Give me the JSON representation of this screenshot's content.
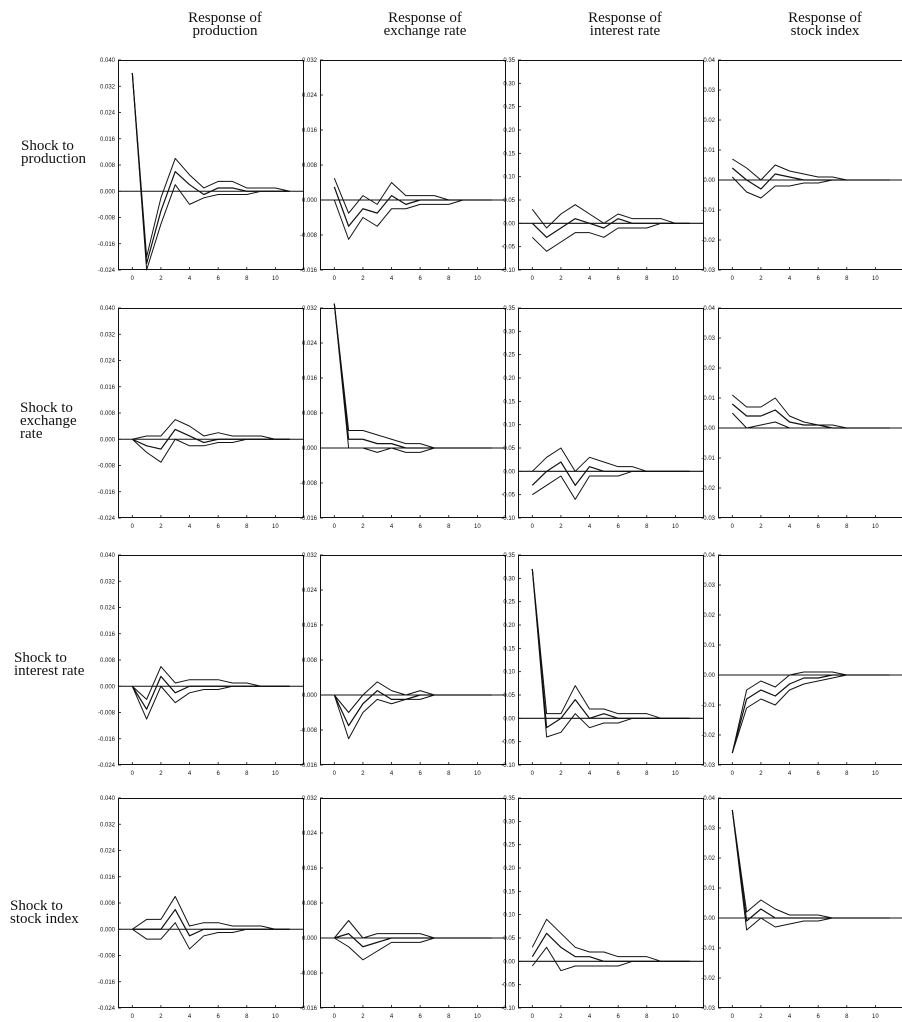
{
  "column_headers": [
    {
      "line1": "Response of",
      "line2": "production"
    },
    {
      "line1": "Response of",
      "line2": "exchange rate"
    },
    {
      "line1": "Response of",
      "line2": "interest rate"
    },
    {
      "line1": "Response of",
      "line2": "stock index"
    }
  ],
  "row_headers": [
    {
      "lines": [
        "Shock to",
        "production"
      ]
    },
    {
      "lines": [
        "Shock to",
        "exchange",
        "rate"
      ]
    },
    {
      "lines": [
        "Shock to",
        "interest rate"
      ]
    },
    {
      "lines": [
        "Shock to",
        "stock index"
      ]
    }
  ],
  "chart_data": {
    "type": "line",
    "x": [
      0,
      1,
      2,
      3,
      4,
      5,
      6,
      7,
      8,
      9,
      10,
      11
    ],
    "x_ticks": [
      0,
      2,
      4,
      6,
      8,
      10
    ],
    "x_tick_labels": [
      "0",
      "2",
      "4",
      "6",
      "8",
      "10"
    ],
    "columns": [
      {
        "ylim": [
          -0.024,
          0.04
        ],
        "yticks": [
          -0.024,
          -0.016,
          -0.008,
          0.0,
          0.008,
          0.016,
          0.024,
          0.032,
          0.04
        ],
        "ytick_labels": [
          "-0.024",
          "-0.016",
          "-0.008",
          "0.000",
          "0.008",
          "0.016",
          "0.024",
          "0.032",
          "0.040"
        ]
      },
      {
        "ylim": [
          -0.016,
          0.032
        ],
        "yticks": [
          -0.016,
          -0.008,
          0.0,
          0.008,
          0.016,
          0.024,
          0.032
        ],
        "ytick_labels": [
          "-0.016",
          "-0.008",
          "0.000",
          "0.008",
          "0.016",
          "0.024",
          "0.032"
        ]
      },
      {
        "ylim": [
          -0.1,
          0.35
        ],
        "yticks": [
          -0.1,
          -0.05,
          0.0,
          0.05,
          0.1,
          0.15,
          0.2,
          0.25,
          0.3,
          0.35
        ],
        "ytick_labels": [
          "-0.10",
          "-0.05",
          "0.00",
          "0.05",
          "0.10",
          "0.15",
          "0.20",
          "0.25",
          "0.30",
          "0.35"
        ]
      },
      {
        "ylim": [
          -0.03,
          0.04
        ],
        "yticks": [
          -0.03,
          -0.02,
          -0.01,
          0.0,
          0.01,
          0.02,
          0.03,
          0.04
        ],
        "ytick_labels": [
          "-0.03",
          "-0.02",
          "-0.01",
          "0.00",
          "0.01",
          "0.02",
          "0.03",
          "0.04"
        ]
      }
    ],
    "panels": [
      [
        {
          "series": [
            {
              "values": [
                0.036,
                -0.02,
                -0.002,
                0.01,
                0.005,
                0.001,
                0.003,
                0.003,
                0.001,
                0.001,
                0.001,
                0.0
              ]
            },
            {
              "values": [
                0.036,
                -0.022,
                -0.006,
                0.006,
                0.002,
                -0.001,
                0.001,
                0.001,
                0.0,
                0.0,
                0.0,
                0.0
              ]
            },
            {
              "values": [
                0.036,
                -0.024,
                -0.01,
                0.002,
                -0.004,
                -0.002,
                -0.001,
                -0.001,
                -0.001,
                0.0,
                0.0,
                0.0
              ]
            }
          ]
        },
        {
          "series": [
            {
              "values": [
                0.005,
                -0.003,
                0.001,
                -0.001,
                0.004,
                0.001,
                0.001,
                0.001,
                0.0,
                0.0,
                0.0,
                0.0
              ]
            },
            {
              "values": [
                0.003,
                -0.006,
                -0.002,
                -0.003,
                0.001,
                -0.001,
                0.0,
                0.0,
                0.0,
                0.0,
                0.0,
                0.0
              ]
            },
            {
              "values": [
                0.0,
                -0.009,
                -0.004,
                -0.006,
                -0.002,
                -0.002,
                -0.001,
                -0.001,
                -0.001,
                0.0,
                0.0,
                0.0
              ]
            }
          ]
        },
        {
          "series": [
            {
              "values": [
                0.03,
                -0.01,
                0.02,
                0.04,
                0.02,
                0.0,
                0.02,
                0.01,
                0.01,
                0.01,
                0.0,
                0.0
              ]
            },
            {
              "values": [
                0.0,
                -0.03,
                -0.01,
                0.01,
                0.0,
                -0.01,
                0.01,
                0.0,
                0.0,
                0.0,
                0.0,
                0.0
              ]
            },
            {
              "values": [
                -0.03,
                -0.06,
                -0.04,
                -0.02,
                -0.02,
                -0.03,
                -0.01,
                -0.01,
                -0.01,
                0.0,
                0.0,
                0.0
              ]
            }
          ]
        },
        {
          "series": [
            {
              "values": [
                0.007,
                0.004,
                0.0,
                0.005,
                0.003,
                0.002,
                0.001,
                0.001,
                0.0,
                0.0,
                0.0,
                0.0
              ]
            },
            {
              "values": [
                0.004,
                0.0,
                -0.003,
                0.002,
                0.001,
                0.0,
                0.0,
                0.0,
                0.0,
                0.0,
                0.0,
                0.0
              ]
            },
            {
              "values": [
                0.001,
                -0.004,
                -0.006,
                -0.002,
                -0.002,
                -0.001,
                -0.001,
                0.0,
                0.0,
                0.0,
                0.0,
                0.0
              ]
            }
          ]
        }
      ],
      [
        {
          "series": [
            {
              "values": [
                0.0,
                0.001,
                0.001,
                0.006,
                0.004,
                0.001,
                0.002,
                0.001,
                0.001,
                0.001,
                0.0,
                0.0
              ]
            },
            {
              "values": [
                0.0,
                -0.002,
                -0.003,
                0.003,
                0.001,
                -0.001,
                0.0,
                0.0,
                0.0,
                0.0,
                0.0,
                0.0
              ]
            },
            {
              "values": [
                0.0,
                -0.004,
                -0.007,
                0.0,
                -0.002,
                -0.002,
                -0.001,
                -0.001,
                0.0,
                0.0,
                0.0,
                0.0
              ]
            }
          ]
        },
        {
          "series": [
            {
              "values": [
                0.033,
                0.004,
                0.004,
                0.003,
                0.002,
                0.001,
                0.001,
                0.0,
                0.0,
                0.0,
                0.0,
                0.0
              ]
            },
            {
              "values": [
                0.033,
                0.002,
                0.002,
                0.001,
                0.001,
                0.0,
                0.0,
                0.0,
                0.0,
                0.0,
                0.0,
                0.0
              ]
            },
            {
              "values": [
                0.033,
                0.0,
                0.0,
                -0.001,
                0.0,
                -0.001,
                -0.001,
                0.0,
                0.0,
                0.0,
                0.0,
                0.0
              ]
            }
          ]
        },
        {
          "series": [
            {
              "values": [
                0.0,
                0.03,
                0.05,
                0.0,
                0.03,
                0.02,
                0.01,
                0.01,
                0.0,
                0.0,
                0.0,
                0.0
              ]
            },
            {
              "values": [
                -0.03,
                0.0,
                0.02,
                -0.03,
                0.01,
                0.0,
                0.0,
                0.0,
                0.0,
                0.0,
                0.0,
                0.0
              ]
            },
            {
              "values": [
                -0.05,
                -0.03,
                -0.01,
                -0.06,
                -0.01,
                -0.01,
                -0.01,
                0.0,
                0.0,
                0.0,
                0.0,
                0.0
              ]
            }
          ]
        },
        {
          "series": [
            {
              "values": [
                0.011,
                0.007,
                0.007,
                0.01,
                0.004,
                0.002,
                0.001,
                0.001,
                0.0,
                0.0,
                0.0,
                0.0
              ]
            },
            {
              "values": [
                0.008,
                0.004,
                0.004,
                0.006,
                0.002,
                0.001,
                0.001,
                0.0,
                0.0,
                0.0,
                0.0,
                0.0
              ]
            },
            {
              "values": [
                0.005,
                0.0,
                0.001,
                0.002,
                0.0,
                0.0,
                0.0,
                0.0,
                0.0,
                0.0,
                0.0,
                0.0
              ]
            }
          ]
        }
      ],
      [
        {
          "series": [
            {
              "values": [
                0.0,
                -0.004,
                0.006,
                0.001,
                0.002,
                0.002,
                0.002,
                0.001,
                0.001,
                0.0,
                0.0,
                0.0
              ]
            },
            {
              "values": [
                0.0,
                -0.007,
                0.003,
                -0.002,
                0.0,
                0.0,
                0.0,
                0.0,
                0.0,
                0.0,
                0.0,
                0.0
              ]
            },
            {
              "values": [
                0.0,
                -0.01,
                0.0,
                -0.005,
                -0.002,
                -0.001,
                -0.001,
                0.0,
                0.0,
                0.0,
                0.0,
                0.0
              ]
            }
          ]
        },
        {
          "series": [
            {
              "values": [
                0.0,
                -0.004,
                0.0,
                0.003,
                0.001,
                0.0,
                0.001,
                0.0,
                0.0,
                0.0,
                0.0,
                0.0
              ]
            },
            {
              "values": [
                0.0,
                -0.007,
                -0.002,
                0.001,
                -0.001,
                -0.001,
                0.0,
                0.0,
                0.0,
                0.0,
                0.0,
                0.0
              ]
            },
            {
              "values": [
                0.0,
                -0.01,
                -0.004,
                -0.001,
                -0.002,
                -0.001,
                -0.001,
                0.0,
                0.0,
                0.0,
                0.0,
                0.0
              ]
            }
          ]
        },
        {
          "series": [
            {
              "values": [
                0.32,
                0.01,
                0.01,
                0.07,
                0.02,
                0.02,
                0.01,
                0.01,
                0.01,
                0.0,
                0.0,
                0.0
              ]
            },
            {
              "values": [
                0.32,
                -0.02,
                0.0,
                0.04,
                0.0,
                0.01,
                0.0,
                0.0,
                0.0,
                0.0,
                0.0,
                0.0
              ]
            },
            {
              "values": [
                0.32,
                -0.04,
                -0.03,
                0.01,
                -0.02,
                -0.01,
                -0.01,
                0.0,
                0.0,
                0.0,
                0.0,
                0.0
              ]
            }
          ]
        },
        {
          "series": [
            {
              "values": [
                -0.026,
                -0.005,
                -0.002,
                -0.004,
                0.0,
                0.001,
                0.001,
                0.001,
                0.0,
                0.0,
                0.0,
                0.0
              ]
            },
            {
              "values": [
                -0.026,
                -0.008,
                -0.005,
                -0.007,
                -0.003,
                -0.001,
                -0.001,
                0.0,
                0.0,
                0.0,
                0.0,
                0.0
              ]
            },
            {
              "values": [
                -0.026,
                -0.011,
                -0.008,
                -0.01,
                -0.005,
                -0.003,
                -0.002,
                -0.001,
                0.0,
                0.0,
                0.0,
                0.0
              ]
            }
          ]
        }
      ],
      [
        {
          "series": [
            {
              "values": [
                0.0,
                0.003,
                0.003,
                0.01,
                0.001,
                0.002,
                0.002,
                0.001,
                0.001,
                0.001,
                0.0,
                0.0
              ]
            },
            {
              "values": [
                0.0,
                0.0,
                0.0,
                0.006,
                -0.002,
                0.0,
                0.0,
                0.0,
                0.0,
                0.0,
                0.0,
                0.0
              ]
            },
            {
              "values": [
                0.0,
                -0.003,
                -0.003,
                0.002,
                -0.006,
                -0.002,
                -0.001,
                -0.001,
                0.0,
                0.0,
                0.0,
                0.0
              ]
            }
          ]
        },
        {
          "series": [
            {
              "values": [
                0.0,
                0.004,
                0.0,
                0.001,
                0.001,
                0.001,
                0.001,
                0.0,
                0.0,
                0.0,
                0.0,
                0.0
              ]
            },
            {
              "values": [
                0.0,
                0.001,
                -0.002,
                -0.001,
                0.0,
                0.0,
                0.0,
                0.0,
                0.0,
                0.0,
                0.0,
                0.0
              ]
            },
            {
              "values": [
                0.0,
                -0.002,
                -0.005,
                -0.003,
                -0.001,
                -0.001,
                -0.001,
                0.0,
                0.0,
                0.0,
                0.0,
                0.0
              ]
            }
          ]
        },
        {
          "series": [
            {
              "values": [
                0.03,
                0.09,
                0.06,
                0.03,
                0.02,
                0.02,
                0.01,
                0.01,
                0.01,
                0.0,
                0.0,
                0.0
              ]
            },
            {
              "values": [
                0.01,
                0.06,
                0.03,
                0.01,
                0.01,
                0.0,
                0.0,
                0.0,
                0.0,
                0.0,
                0.0,
                0.0
              ]
            },
            {
              "values": [
                -0.01,
                0.03,
                -0.02,
                -0.01,
                -0.01,
                -0.01,
                -0.01,
                0.0,
                0.0,
                0.0,
                0.0,
                0.0
              ]
            }
          ]
        },
        {
          "series": [
            {
              "values": [
                0.036,
                0.002,
                0.006,
                0.003,
                0.001,
                0.001,
                0.001,
                0.0,
                0.0,
                0.0,
                0.0,
                0.0
              ]
            },
            {
              "values": [
                0.036,
                -0.001,
                0.003,
                0.0,
                0.0,
                0.0,
                0.0,
                0.0,
                0.0,
                0.0,
                0.0,
                0.0
              ]
            },
            {
              "values": [
                0.036,
                -0.004,
                0.0,
                -0.003,
                -0.002,
                -0.001,
                -0.001,
                0.0,
                0.0,
                0.0,
                0.0,
                0.0
              ]
            }
          ]
        }
      ]
    ]
  }
}
